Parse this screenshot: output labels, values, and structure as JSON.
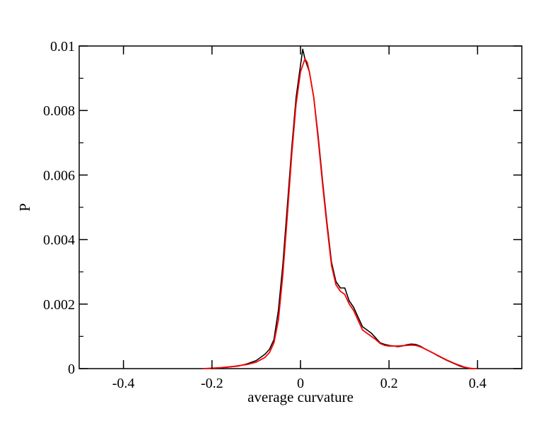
{
  "chart_data": {
    "type": "line",
    "title": "",
    "xlabel": "average curvature",
    "ylabel": "P",
    "xlim": [
      -0.5,
      0.5
    ],
    "ylim": [
      0,
      0.01
    ],
    "xticks": [
      -0.4,
      -0.2,
      0,
      0.2,
      0.4
    ],
    "xtick_labels": [
      "-0.4",
      "-0.2",
      "0",
      "0.2",
      "0.4"
    ],
    "yticks": [
      0,
      0.002,
      0.004,
      0.006,
      0.008,
      0.01
    ],
    "ytick_labels": [
      "0",
      "0.002",
      "0.004",
      "0.006",
      "0.008",
      "0.01"
    ],
    "grid": false,
    "legend": "none",
    "series": [
      {
        "color": "#000000",
        "x": [
          -0.2,
          -0.16,
          -0.14,
          -0.12,
          -0.1,
          -0.08,
          -0.07,
          -0.06,
          -0.05,
          -0.04,
          -0.03,
          -0.02,
          -0.01,
          0.0,
          0.005,
          0.01,
          0.015,
          0.02,
          0.025,
          0.03,
          0.04,
          0.05,
          0.06,
          0.07,
          0.08,
          0.09,
          0.1,
          0.11,
          0.12,
          0.13,
          0.14,
          0.15,
          0.16,
          0.17,
          0.18,
          0.19,
          0.2,
          0.21,
          0.22,
          0.23,
          0.24,
          0.25,
          0.26,
          0.27,
          0.28,
          0.29,
          0.3,
          0.31,
          0.32,
          0.33,
          0.34,
          0.35,
          0.36,
          0.37,
          0.38,
          0.39
        ],
        "y": [
          0.0,
          5e-05,
          8e-05,
          0.00015,
          0.00025,
          0.00045,
          0.0006,
          0.0009,
          0.0018,
          0.0032,
          0.005,
          0.0068,
          0.0084,
          0.0094,
          0.0099,
          0.0096,
          0.0094,
          0.0092,
          0.0088,
          0.0084,
          0.0072,
          0.0058,
          0.0045,
          0.0033,
          0.0027,
          0.0025,
          0.0025,
          0.0021,
          0.0019,
          0.0016,
          0.0013,
          0.0012,
          0.0011,
          0.00095,
          0.0008,
          0.00075,
          0.00072,
          0.0007,
          0.00068,
          0.0007,
          0.00074,
          0.00076,
          0.00075,
          0.0007,
          0.00062,
          0.00055,
          0.00048,
          0.0004,
          0.00033,
          0.00026,
          0.0002,
          0.00014,
          8e-05,
          4e-05,
          1e-05,
          0.0
        ]
      },
      {
        "color": "#ff0000",
        "x": [
          -0.22,
          -0.18,
          -0.15,
          -0.12,
          -0.1,
          -0.08,
          -0.07,
          -0.06,
          -0.05,
          -0.04,
          -0.03,
          -0.02,
          -0.01,
          0.0,
          0.01,
          0.015,
          0.02,
          0.03,
          0.04,
          0.05,
          0.06,
          0.07,
          0.08,
          0.09,
          0.1,
          0.11,
          0.12,
          0.13,
          0.14,
          0.15,
          0.16,
          0.17,
          0.18,
          0.19,
          0.2,
          0.21,
          0.22,
          0.23,
          0.24,
          0.25,
          0.26,
          0.27,
          0.28,
          0.29,
          0.3,
          0.31,
          0.32,
          0.33,
          0.34,
          0.35,
          0.36,
          0.37,
          0.38,
          0.39,
          0.4
        ],
        "y": [
          0.0,
          3e-05,
          7e-05,
          0.00013,
          0.0002,
          0.00035,
          0.0005,
          0.0008,
          0.0015,
          0.0029,
          0.0047,
          0.0066,
          0.0082,
          0.0092,
          0.0096,
          0.0095,
          0.0092,
          0.0084,
          0.0071,
          0.0057,
          0.0044,
          0.0032,
          0.0026,
          0.0024,
          0.0023,
          0.002,
          0.0018,
          0.0015,
          0.0012,
          0.0011,
          0.001,
          0.0009,
          0.00078,
          0.00072,
          0.0007,
          0.0007,
          0.0007,
          0.00071,
          0.00072,
          0.00073,
          0.00072,
          0.00068,
          0.00062,
          0.00055,
          0.00048,
          0.00041,
          0.00034,
          0.00027,
          0.00021,
          0.00015,
          0.0001,
          5e-05,
          2e-05,
          0.0,
          0.0
        ]
      }
    ]
  }
}
